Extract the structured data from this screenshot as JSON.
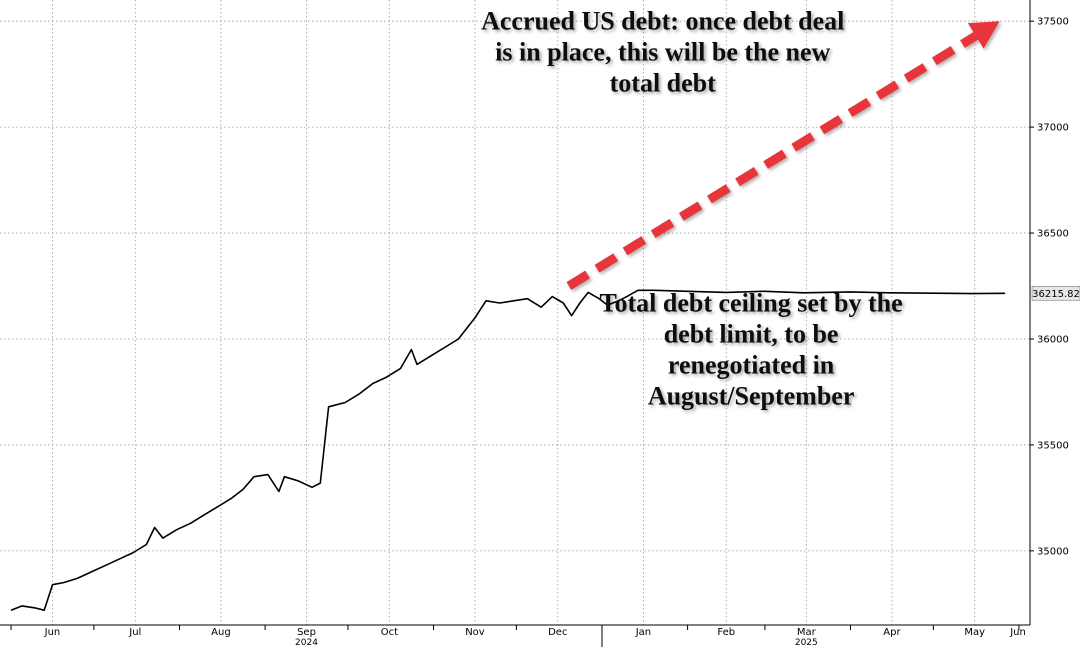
{
  "chart_data": {
    "type": "line",
    "x_tick_labels": [
      "Jun",
      "Jul",
      "Aug",
      "Sep",
      "Oct",
      "Nov",
      "Dec",
      "Jan",
      "Feb",
      "Mar",
      "Apr",
      "May",
      "Jun"
    ],
    "x_year_labels": [
      "2024",
      "2025"
    ],
    "y_ticks": [
      35000,
      35500,
      36000,
      36500,
      37000,
      37500
    ],
    "ylim": [
      34650,
      37600
    ],
    "grid": true,
    "last_value_label": "36215.82",
    "series": [
      {
        "color": "#000000",
        "points": [
          [
            "2024-06-01",
            34720
          ],
          [
            "2024-06-05",
            34740
          ],
          [
            "2024-06-10",
            34730
          ],
          [
            "2024-06-13",
            34720
          ],
          [
            "2024-06-16",
            34840
          ],
          [
            "2024-06-20",
            34850
          ],
          [
            "2024-06-25",
            34870
          ],
          [
            "2024-06-30",
            34900
          ],
          [
            "2024-07-05",
            34930
          ],
          [
            "2024-07-10",
            34960
          ],
          [
            "2024-07-15",
            34990
          ],
          [
            "2024-07-20",
            35030
          ],
          [
            "2024-07-23",
            35110
          ],
          [
            "2024-07-26",
            35060
          ],
          [
            "2024-07-31",
            35100
          ],
          [
            "2024-08-05",
            35130
          ],
          [
            "2024-08-10",
            35170
          ],
          [
            "2024-08-15",
            35210
          ],
          [
            "2024-08-20",
            35250
          ],
          [
            "2024-08-24",
            35290
          ],
          [
            "2024-08-28",
            35350
          ],
          [
            "2024-09-02",
            35360
          ],
          [
            "2024-09-06",
            35280
          ],
          [
            "2024-09-08",
            35350
          ],
          [
            "2024-09-13",
            35330
          ],
          [
            "2024-09-18",
            35300
          ],
          [
            "2024-09-21",
            35320
          ],
          [
            "2024-09-24",
            35680
          ],
          [
            "2024-09-30",
            35700
          ],
          [
            "2024-10-05",
            35740
          ],
          [
            "2024-10-10",
            35790
          ],
          [
            "2024-10-15",
            35820
          ],
          [
            "2024-10-20",
            35860
          ],
          [
            "2024-10-24",
            35950
          ],
          [
            "2024-10-26",
            35880
          ],
          [
            "2024-10-31",
            35920
          ],
          [
            "2024-11-05",
            35960
          ],
          [
            "2024-11-10",
            36000
          ],
          [
            "2024-11-13",
            36050
          ],
          [
            "2024-11-16",
            36100
          ],
          [
            "2024-11-20",
            36180
          ],
          [
            "2024-11-25",
            36170
          ],
          [
            "2024-11-30",
            36180
          ],
          [
            "2024-12-05",
            36190
          ],
          [
            "2024-12-10",
            36150
          ],
          [
            "2024-12-14",
            36200
          ],
          [
            "2024-12-18",
            36170
          ],
          [
            "2024-12-21",
            36110
          ],
          [
            "2024-12-24",
            36170
          ],
          [
            "2024-12-27",
            36220
          ],
          [
            "2024-12-31",
            36190
          ],
          [
            "2025-01-03",
            36160
          ],
          [
            "2025-01-07",
            36180
          ],
          [
            "2025-01-10",
            36200
          ],
          [
            "2025-01-14",
            36230
          ],
          [
            "2025-01-20",
            36230
          ],
          [
            "2025-02-01",
            36225
          ],
          [
            "2025-02-15",
            36220
          ],
          [
            "2025-03-01",
            36225
          ],
          [
            "2025-03-15",
            36218
          ],
          [
            "2025-04-01",
            36222
          ],
          [
            "2025-04-15",
            36218
          ],
          [
            "2025-05-01",
            36216
          ],
          [
            "2025-05-15",
            36214
          ],
          [
            "2025-05-27",
            36215.82
          ]
        ]
      }
    ],
    "arrow": {
      "color": "#e8343a",
      "from": [
        "2024-12-20",
        36250
      ],
      "to": [
        "2025-05-25",
        37500
      ]
    },
    "annotations": [
      {
        "lines": [
          "Accrued US debt: once debt deal",
          "is in place, this will be the new",
          "total debt"
        ],
        "anchor": [
          "2025-01-23",
          37460
        ]
      },
      {
        "lines": [
          "Total debt ceiling set by the",
          "debt limit, to be",
          "renegotiated in",
          "August/September"
        ],
        "anchor": [
          "2025-02-24",
          36130
        ]
      }
    ]
  }
}
